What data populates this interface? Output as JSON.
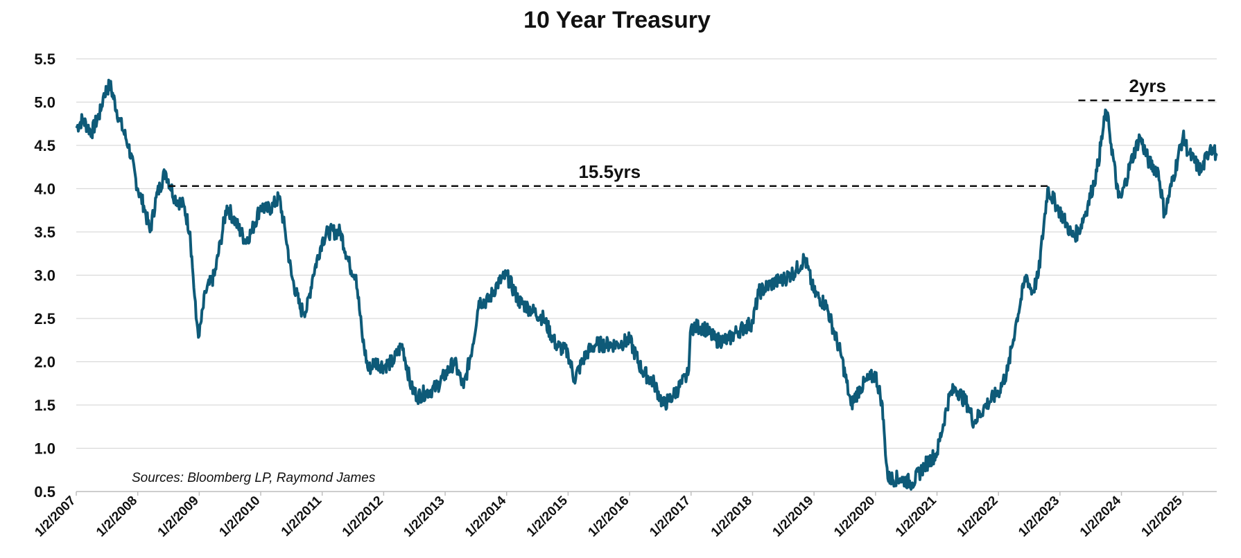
{
  "chart_data": {
    "type": "line",
    "title": "10 Year Treasury",
    "xlabel": "",
    "ylabel": "",
    "ylim": [
      0.5,
      5.5
    ],
    "y_ticks": [
      "5.5",
      "5.0",
      "4.5",
      "4.0",
      "3.5",
      "3.0",
      "2.5",
      "2.0",
      "1.5",
      "1.0",
      "0.5"
    ],
    "x_ticks": [
      "1/2/2007",
      "1/2/2008",
      "1/2/2009",
      "1/2/2010",
      "1/2/2011",
      "1/2/2012",
      "1/2/2013",
      "1/2/2014",
      "1/2/2015",
      "1/2/2016",
      "1/2/2017",
      "1/2/2018",
      "1/2/2019",
      "1/2/2020",
      "1/2/2021",
      "1/2/2022",
      "1/2/2023",
      "1/2/2024",
      "1/2/2025"
    ],
    "xlim": [
      2007.0,
      2025.55
    ],
    "grid": "horizontal",
    "line_color": "#0e5a78",
    "series": [
      {
        "x": [
          2007.0,
          2007.1,
          2007.25,
          2007.4,
          2007.45,
          2007.55,
          2007.7,
          2007.85,
          2008.0,
          2008.1,
          2008.2,
          2008.3,
          2008.45,
          2008.6,
          2008.75,
          2008.85,
          2008.9,
          2008.95,
          2009.0,
          2009.1,
          2009.25,
          2009.35,
          2009.45,
          2009.6,
          2009.75,
          2009.85,
          2010.0,
          2010.1,
          2010.2,
          2010.3,
          2010.4,
          2010.5,
          2010.65,
          2010.75,
          2010.85,
          2011.0,
          2011.1,
          2011.3,
          2011.45,
          2011.55,
          2011.65,
          2011.75,
          2011.85,
          2012.0,
          2012.15,
          2012.3,
          2012.45,
          2012.55,
          2012.7,
          2012.85,
          2013.0,
          2013.15,
          2013.3,
          2013.45,
          2013.55,
          2013.7,
          2013.85,
          2014.0,
          2014.2,
          2014.4,
          2014.6,
          2014.8,
          2015.0,
          2015.1,
          2015.3,
          2015.45,
          2015.6,
          2015.8,
          2016.0,
          2016.2,
          2016.4,
          2016.55,
          2016.7,
          2016.85,
          2016.95,
          2017.0,
          2017.2,
          2017.4,
          2017.6,
          2017.75,
          2018.0,
          2018.1,
          2018.3,
          2018.5,
          2018.7,
          2018.85,
          2019.0,
          2019.2,
          2019.45,
          2019.6,
          2019.75,
          2019.9,
          2020.0,
          2020.1,
          2020.15,
          2020.2,
          2020.4,
          2020.6,
          2020.8,
          2021.0,
          2021.2,
          2021.3,
          2021.5,
          2021.6,
          2021.8,
          2022.0,
          2022.15,
          2022.3,
          2022.45,
          2022.55,
          2022.65,
          2022.8,
          2022.95,
          2023.1,
          2023.2,
          2023.3,
          2023.45,
          2023.6,
          2023.75,
          2023.8,
          2023.95,
          2024.0,
          2024.15,
          2024.3,
          2024.45,
          2024.6,
          2024.7,
          2025.0,
          2025.1,
          2025.3,
          2025.45,
          2025.55
        ],
        "y": [
          4.7,
          4.8,
          4.65,
          4.9,
          5.1,
          5.2,
          4.8,
          4.5,
          4.0,
          3.8,
          3.5,
          3.9,
          4.2,
          3.9,
          3.8,
          3.5,
          3.0,
          2.5,
          2.3,
          2.8,
          3.0,
          3.4,
          3.8,
          3.6,
          3.4,
          3.5,
          3.8,
          3.75,
          3.8,
          3.9,
          3.5,
          3.0,
          2.6,
          2.6,
          3.0,
          3.4,
          3.5,
          3.5,
          3.1,
          3.0,
          2.3,
          1.9,
          2.0,
          1.95,
          2.0,
          2.2,
          1.7,
          1.6,
          1.65,
          1.7,
          1.85,
          2.0,
          1.7,
          2.2,
          2.7,
          2.7,
          2.9,
          3.0,
          2.7,
          2.6,
          2.5,
          2.2,
          2.1,
          1.8,
          2.1,
          2.2,
          2.2,
          2.2,
          2.25,
          1.9,
          1.75,
          1.5,
          1.6,
          1.75,
          1.85,
          2.4,
          2.4,
          2.25,
          2.25,
          2.35,
          2.45,
          2.8,
          2.9,
          2.95,
          3.05,
          3.2,
          2.8,
          2.65,
          2.05,
          1.5,
          1.7,
          1.8,
          1.85,
          1.55,
          1.1,
          0.65,
          0.65,
          0.6,
          0.8,
          0.95,
          1.6,
          1.7,
          1.5,
          1.3,
          1.5,
          1.65,
          1.9,
          2.5,
          3.0,
          2.8,
          3.0,
          4.0,
          3.8,
          3.6,
          3.45,
          3.5,
          3.8,
          4.2,
          4.9,
          4.7,
          3.9,
          3.9,
          4.3,
          4.6,
          4.3,
          4.2,
          3.7,
          4.6,
          4.4,
          4.2,
          4.5,
          4.38
        ]
      }
    ],
    "annotations": [
      {
        "label": "15.5yrs",
        "level": 4.03,
        "x_start": 2008.5,
        "x_end": 2022.85
      },
      {
        "label": "2yrs",
        "level": 5.02,
        "x_start": 2023.3,
        "x_end": 2025.55
      }
    ],
    "source": "Sources: Bloomberg LP, Raymond James"
  }
}
